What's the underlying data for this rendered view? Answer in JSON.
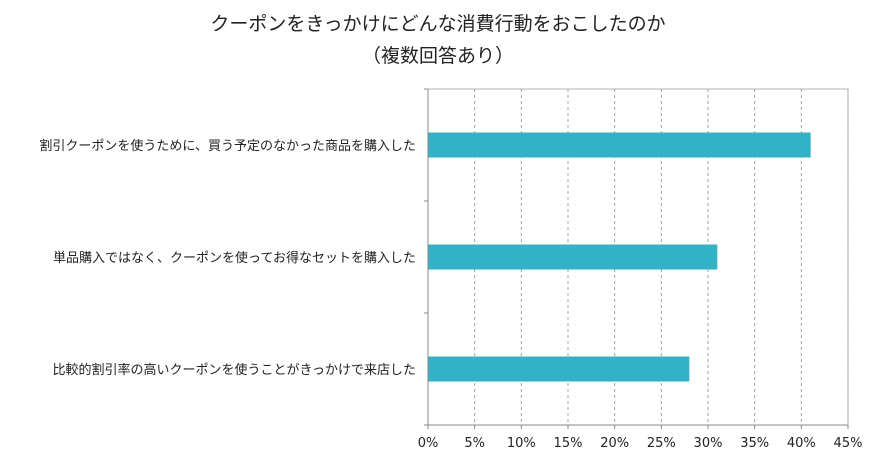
{
  "chart_data": {
    "type": "bar",
    "orientation": "horizontal",
    "title_lines": [
      "クーポンをきっかけにどんな消費行動をおこしたのか",
      "（複数回答あり）"
    ],
    "categories": [
      "割引クーポンを使うために、買う予定のなかった商品を購入した",
      "単品購入ではなく、クーポンを使ってお得なセットを購入した",
      "比較的割引率の高いクーポンを使うことがきっかけで来店した"
    ],
    "values": [
      41,
      31,
      28
    ],
    "x_ticks": [
      "0%",
      "5%",
      "10%",
      "15%",
      "20%",
      "25%",
      "30%",
      "35%",
      "40%",
      "45%"
    ],
    "xlim": [
      0,
      45
    ],
    "unit": "%",
    "grid": "vertical dashed",
    "bar_color": "#33B2C7",
    "gridline_color": "#A0A0A0",
    "axis_color": "#888888"
  }
}
